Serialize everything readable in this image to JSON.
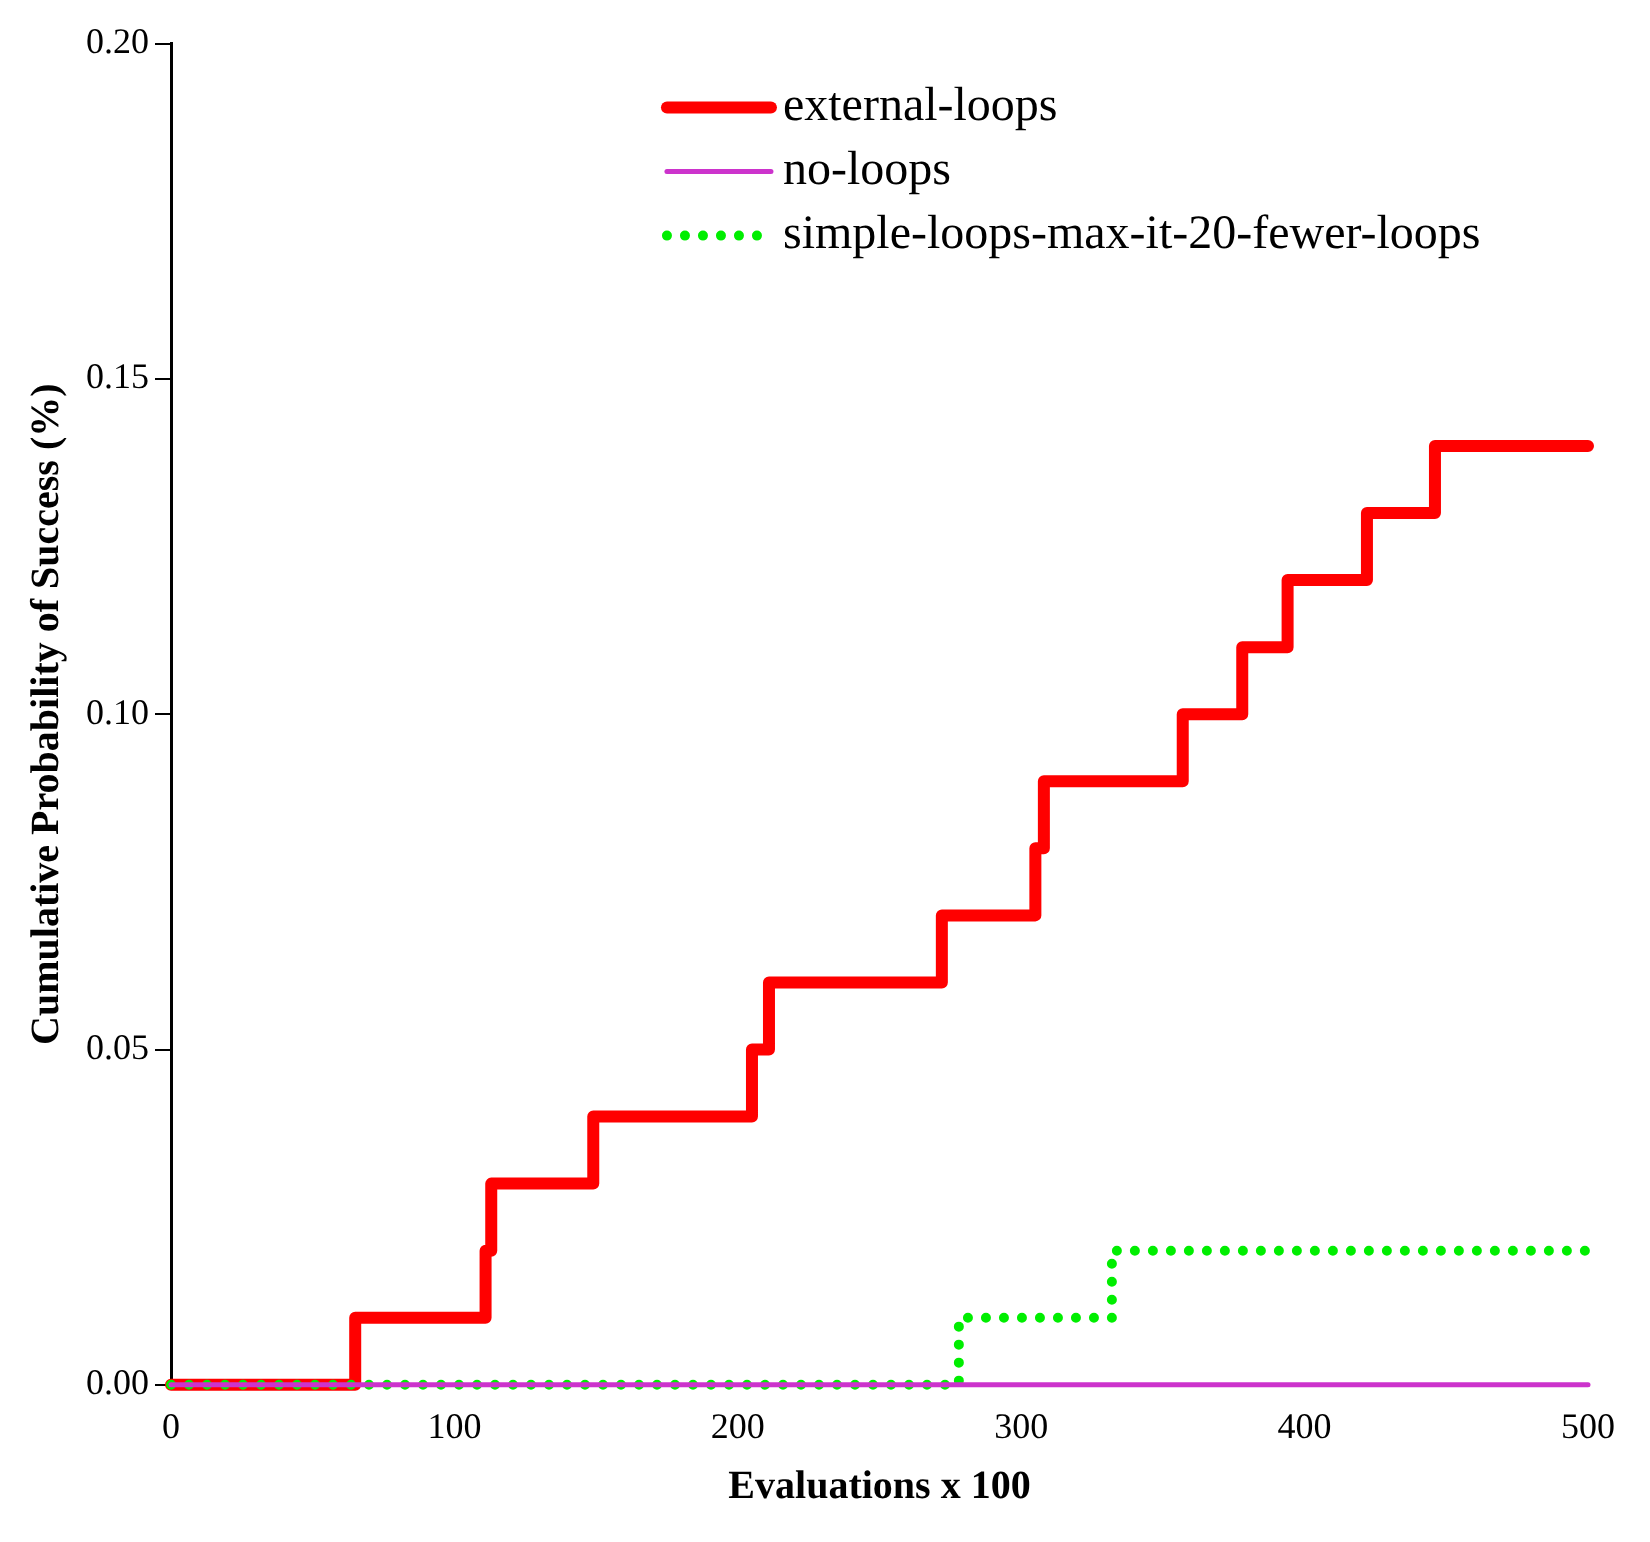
{
  "chart_data": {
    "type": "step",
    "xlabel": "Evaluations x 100",
    "ylabel": "Cumulative Probability of Success (%)",
    "xlim": [
      0,
      500
    ],
    "xticks": [
      0,
      100,
      200,
      300,
      400,
      500
    ],
    "ylim": [
      0,
      0.2
    ],
    "yticks": [
      {
        "value": 0,
        "label": "0.00"
      },
      {
        "value": 0.05,
        "label": "0.05"
      },
      {
        "value": 0.1,
        "label": "0.10"
      },
      {
        "value": 0.15,
        "label": "0.15"
      },
      {
        "value": 0.2,
        "label": "0.20"
      }
    ],
    "grid": false,
    "legend": "top",
    "series": [
      {
        "name": "external-loops",
        "color": "#ff0000",
        "line_style": "solid",
        "x": [
          0,
          65,
          111,
          113,
          149,
          205,
          211,
          272,
          305,
          308,
          357,
          378,
          394,
          422,
          446,
          500
        ],
        "values": [
          0,
          0.01,
          0.02,
          0.03,
          0.04,
          0.05,
          0.06,
          0.07,
          0.08,
          0.09,
          0.1,
          0.11,
          0.12,
          0.13,
          0.14,
          0.14
        ]
      },
      {
        "name": "no-loops",
        "color": "#cc33cc",
        "line_style": "solid",
        "x": [
          0,
          500
        ],
        "values": [
          0,
          0
        ]
      },
      {
        "name": "simple-loops-max-it-20-fewer-loops",
        "color": "#00ee00",
        "line_style": "dotted",
        "x": [
          0,
          278,
          332,
          500
        ],
        "values": [
          0,
          0.01,
          0.02,
          0.02
        ]
      }
    ]
  }
}
